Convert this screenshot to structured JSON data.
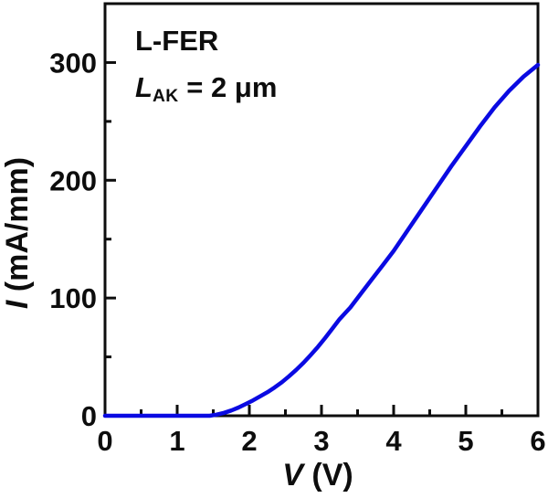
{
  "chart_data": {
    "type": "line",
    "xlabel_var": "V",
    "xlabel_unit": " (V)",
    "ylabel_var": "I",
    "ylabel_unit": " (mA/mm)",
    "xlim": [
      0,
      6
    ],
    "ylim": [
      0,
      350
    ],
    "x_major_ticks": [
      0,
      1,
      2,
      3,
      4,
      5,
      6
    ],
    "y_major_ticks": [
      0,
      100,
      200,
      300
    ],
    "x_minor_step": 0.5,
    "y_minor_step": 50,
    "grid": false,
    "legend": "none",
    "line_color": "#0a0ae2",
    "axis_color": "#0d0d0d",
    "annotation": {
      "line1": "L-FER",
      "line2_var": "L",
      "line2_sub": "AK",
      "line2_rest": " = 2 μm"
    },
    "series": [
      {
        "name": "L-FER LAK = 2 um",
        "x": [
          0,
          0.5,
          1.0,
          1.3,
          1.45,
          1.55,
          1.65,
          1.75,
          1.85,
          1.95,
          2.05,
          2.15,
          2.25,
          2.35,
          2.45,
          2.55,
          2.65,
          2.75,
          2.85,
          2.95,
          3.05,
          3.15,
          3.25,
          3.4,
          3.55,
          3.7,
          3.85,
          4.0,
          4.2,
          4.4,
          4.6,
          4.8,
          5.0,
          5.2,
          5.4,
          5.6,
          5.8,
          6.0
        ],
        "y": [
          0,
          0,
          0,
          0,
          0,
          1,
          2.5,
          4.5,
          7,
          10,
          13,
          16.5,
          20,
          24,
          28.5,
          33.5,
          39,
          45,
          51.5,
          58.5,
          66,
          74,
          82,
          92,
          104,
          116,
          128,
          140,
          158,
          176,
          194,
          212,
          229,
          246,
          262,
          276,
          288,
          298
        ]
      }
    ]
  }
}
